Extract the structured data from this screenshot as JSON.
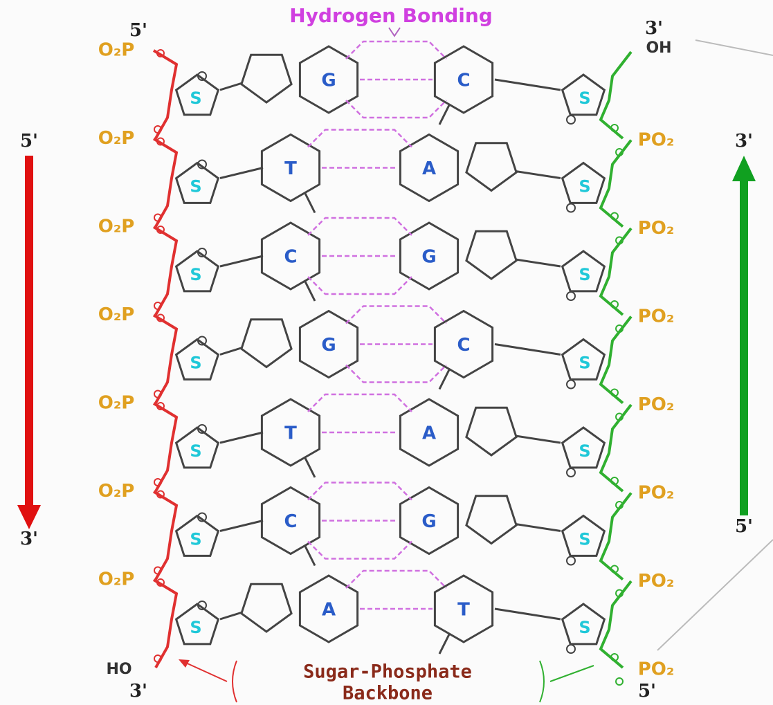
{
  "title": "Hydrogen Bonding",
  "ends": {
    "left_top": "5'",
    "right_top": "3'",
    "right_top_group": "OH",
    "left_bottom_group": "HO",
    "left_bottom": "3'",
    "right_bottom": "5'"
  },
  "arrows": {
    "left": {
      "start": "5'",
      "end": "3'"
    },
    "right": {
      "start": "5'",
      "end": "3'"
    }
  },
  "rows": [
    {
      "left_phosphate": "O₂P",
      "left_sugar": "S",
      "left_base": "G",
      "right_base": "C",
      "right_sugar": "S",
      "right_phosphate": "PO₂"
    },
    {
      "left_phosphate": "O₂P",
      "left_sugar": "S",
      "left_base": "T",
      "right_base": "A",
      "right_sugar": "S",
      "right_phosphate": "PO₂"
    },
    {
      "left_phosphate": "O₂P",
      "left_sugar": "S",
      "left_base": "C",
      "right_base": "G",
      "right_sugar": "S",
      "right_phosphate": "PO₂"
    },
    {
      "left_phosphate": "O₂P",
      "left_sugar": "S",
      "left_base": "G",
      "right_base": "C",
      "right_sugar": "S",
      "right_phosphate": "PO₂"
    },
    {
      "left_phosphate": "O₂P",
      "left_sugar": "S",
      "left_base": "T",
      "right_base": "A",
      "right_sugar": "S",
      "right_phosphate": "PO₂"
    },
    {
      "left_phosphate": "O₂P",
      "left_sugar": "S",
      "left_base": "C",
      "right_base": "G",
      "right_sugar": "S",
      "right_phosphate": "PO₂"
    },
    {
      "left_phosphate": "O₂P",
      "left_sugar": "S",
      "left_base": "A",
      "right_base": "T",
      "right_sugar": "S",
      "right_phosphate": "PO₂"
    }
  ],
  "backbone_label": [
    "Sugar-Phosphate",
    "Backbone"
  ]
}
